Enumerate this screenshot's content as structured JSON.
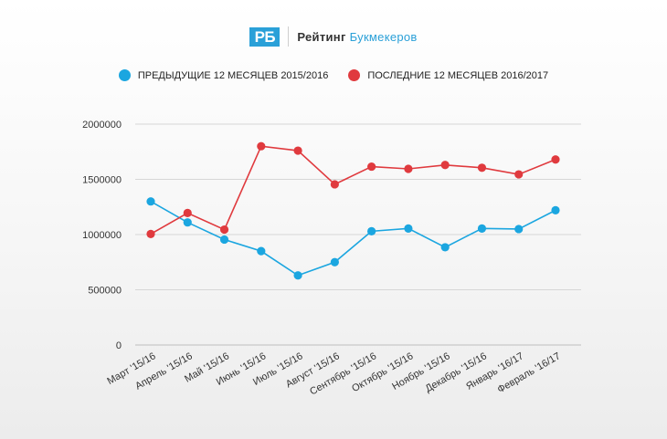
{
  "brand": {
    "logo": "РБ",
    "name_part1": "Рейтинг",
    "name_part2": "Букмекеров"
  },
  "colors": {
    "accent": "#2aa0d8",
    "series_prev": "#1ba6e0",
    "series_last": "#e03a3e"
  },
  "chart_data": {
    "type": "line",
    "categories": [
      "Март '15/16",
      "Апрель '15/16",
      "Май '15/16",
      "Июнь '15/16",
      "Июль '15/16",
      "Август '15/16",
      "Сентябрь '15/16",
      "Октябрь '15/16",
      "Ноябрь '15/16",
      "Декабрь '15/16",
      "Январь '16/17",
      "Февраль '16/17"
    ],
    "series": [
      {
        "name": "Предыдущие 12 месяцев 2015/2016",
        "color": "#1ba6e0",
        "values": [
          1300000,
          1110000,
          955000,
          850000,
          630000,
          750000,
          1030000,
          1055000,
          885000,
          1055000,
          1050000,
          1220000
        ]
      },
      {
        "name": "Последние 12 месяцев 2016/2017",
        "color": "#e03a3e",
        "values": [
          1005000,
          1195000,
          1045000,
          1800000,
          1760000,
          1455000,
          1615000,
          1595000,
          1630000,
          1605000,
          1545000,
          1680000
        ]
      }
    ],
    "y_ticks": [
      "0",
      "500000",
      "1000000",
      "1500000",
      "2000000"
    ],
    "ylim": [
      0,
      2000000
    ],
    "grid": true,
    "legend_position": "top-center"
  }
}
